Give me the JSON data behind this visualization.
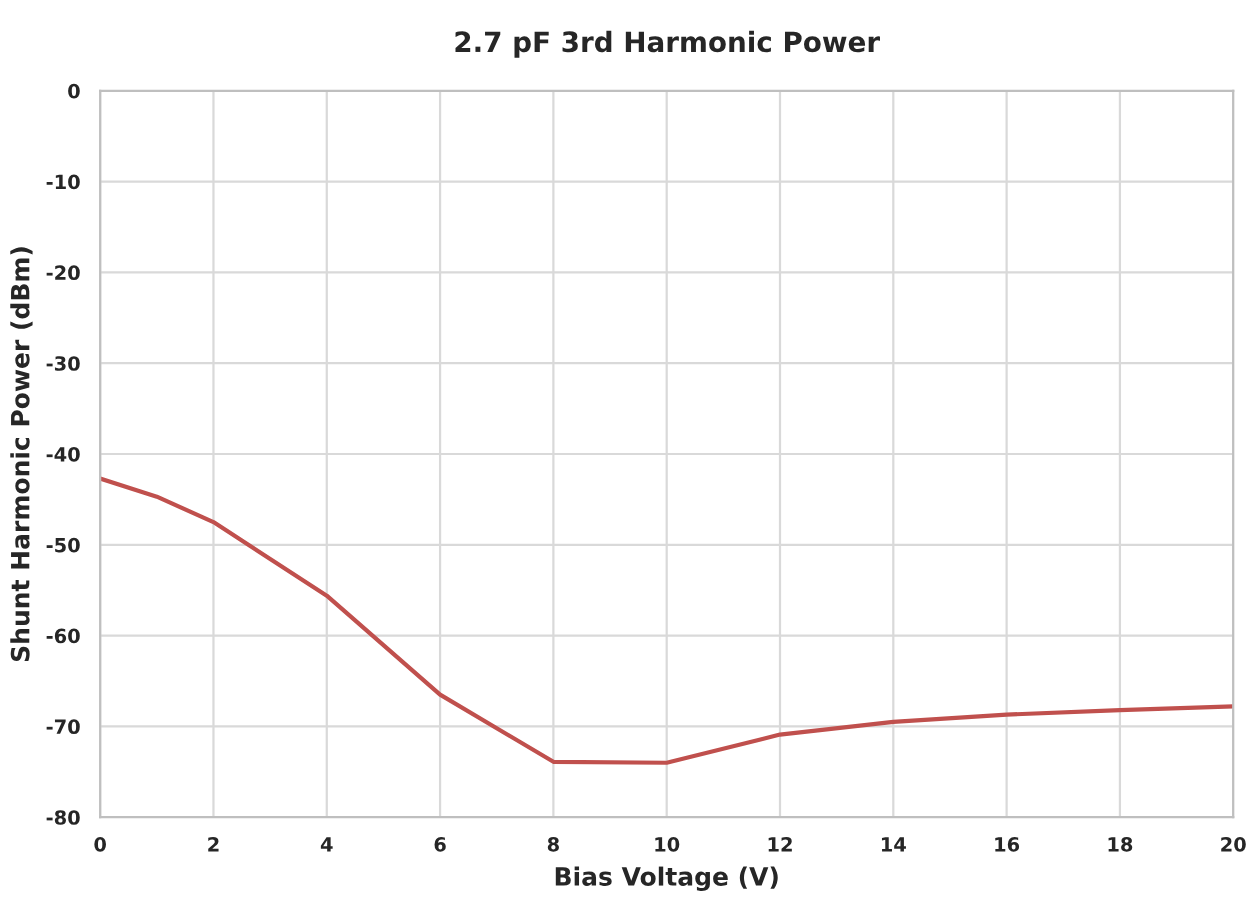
{
  "chart_data": {
    "type": "line",
    "title": "2.7 pF 3rd Harmonic Power",
    "xlabel": "Bias Voltage (V)",
    "ylabel": "Shunt Harmonic Power (dBm)",
    "x": [
      0,
      1,
      2,
      4,
      6,
      8,
      10,
      12,
      14,
      16,
      18,
      20
    ],
    "series": [
      {
        "color": "#c0504d",
        "values": [
          -42.7,
          -44.7,
          -47.5,
          -55.6,
          -66.5,
          -73.9,
          -74.0,
          -70.9,
          -69.5,
          -68.7,
          -68.2,
          -67.8
        ]
      }
    ],
    "xlim": [
      0,
      20
    ],
    "xticks": [
      0,
      2,
      4,
      6,
      8,
      10,
      12,
      14,
      16,
      18,
      20
    ],
    "ylim": [
      -80,
      0
    ],
    "yticks": [
      -80,
      -70,
      -60,
      -50,
      -40,
      -30,
      -20,
      -10,
      0
    ],
    "grid": true,
    "marker": "none",
    "line_style": "solid"
  }
}
